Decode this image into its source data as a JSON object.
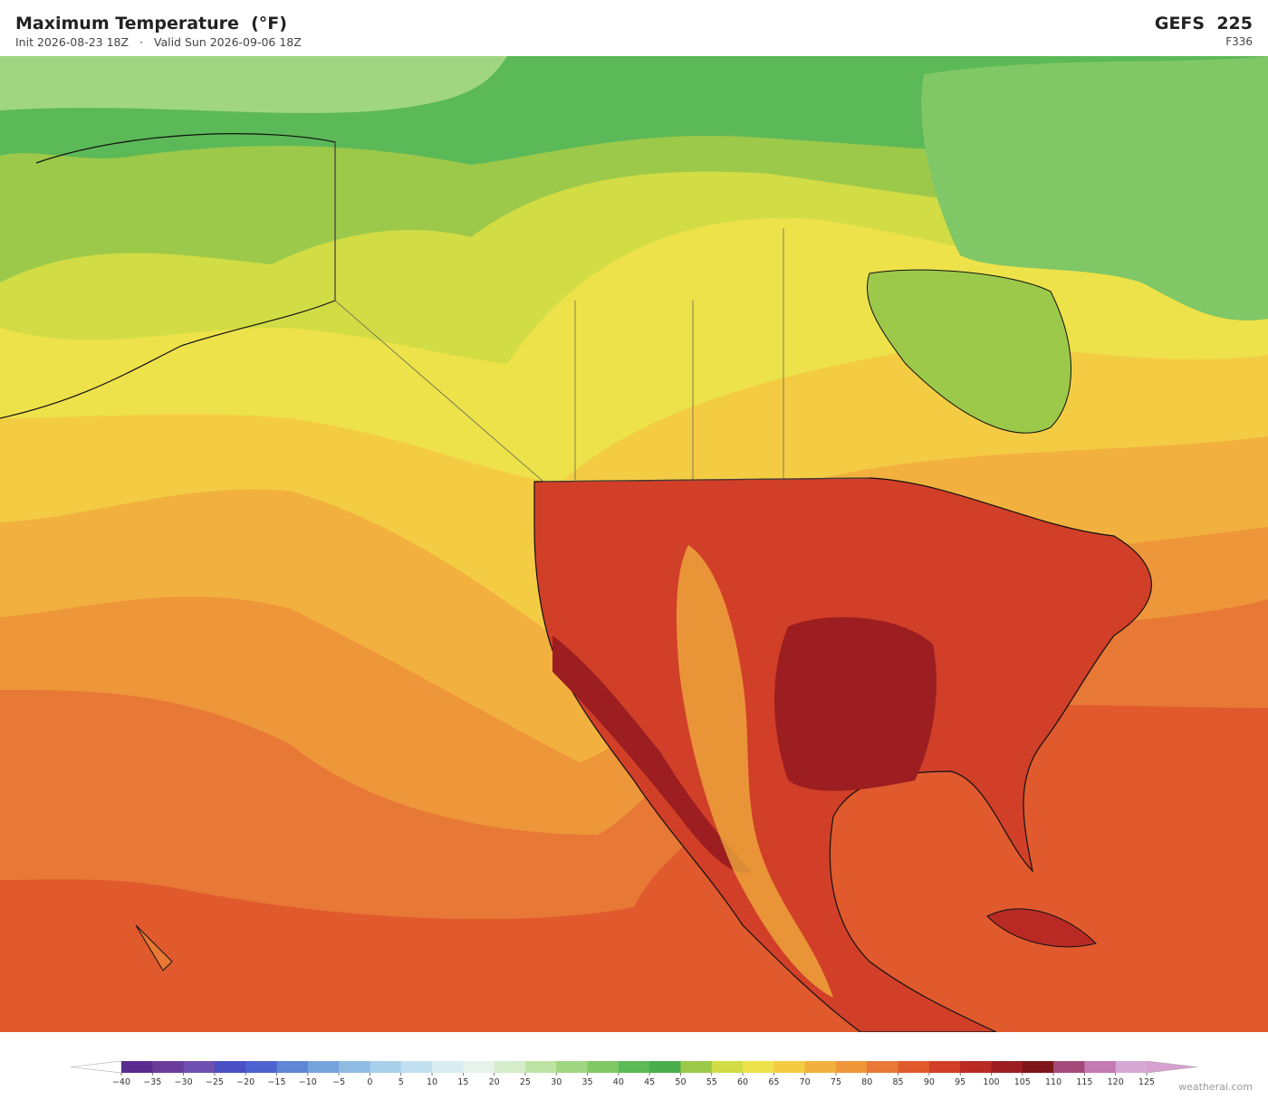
{
  "header": {
    "title": "Maximum Temperature  (°F)",
    "init": "Init 2026-08-23 18Z",
    "valid": "Valid Sun 2026-09-06 18Z",
    "model": "GEFS  225",
    "forecast_hour": "F336"
  },
  "colorbar": {
    "ticks": [
      {
        "value": -40,
        "label": "−40"
      },
      {
        "value": -35,
        "label": "−35"
      },
      {
        "value": -30,
        "label": "−30"
      },
      {
        "value": -25,
        "label": "−25"
      },
      {
        "value": -20,
        "label": "−20"
      },
      {
        "value": -15,
        "label": "−15"
      },
      {
        "value": -10,
        "label": "−10"
      },
      {
        "value": -5,
        "label": "−5"
      },
      0,
      5,
      10,
      15,
      20,
      25,
      30,
      35,
      40,
      45,
      50,
      55,
      60,
      65,
      70,
      75,
      80,
      85,
      90,
      95,
      100,
      105,
      110,
      115,
      120,
      125
    ],
    "colors": [
      "#5b2c8f",
      "#6a3d9a",
      "#6f4fb0",
      "#4a4fc4",
      "#4c63cf",
      "#5e86d4",
      "#77a3dc",
      "#8fbbe2",
      "#a8d0ea",
      "#c1e1f0",
      "#d8ecf2",
      "#e6f3ea",
      "#d4ecca",
      "#bde3a4",
      "#a0d681",
      "#80c866",
      "#5cb957",
      "#4aad4e",
      "#9cc94a",
      "#d2dc44",
      "#ede24a",
      "#f4cc44",
      "#f2b13e",
      "#ee963a",
      "#e87835",
      "#e05a2e",
      "#d13f28",
      "#b92a25",
      "#9c1e20",
      "#7e171c",
      "#a34a7a",
      "#c37ab0",
      "#d8a8d4"
    ],
    "under_color": "#ffffff",
    "over_color": "#d8a0d0"
  },
  "credit": "weatherai.com"
}
